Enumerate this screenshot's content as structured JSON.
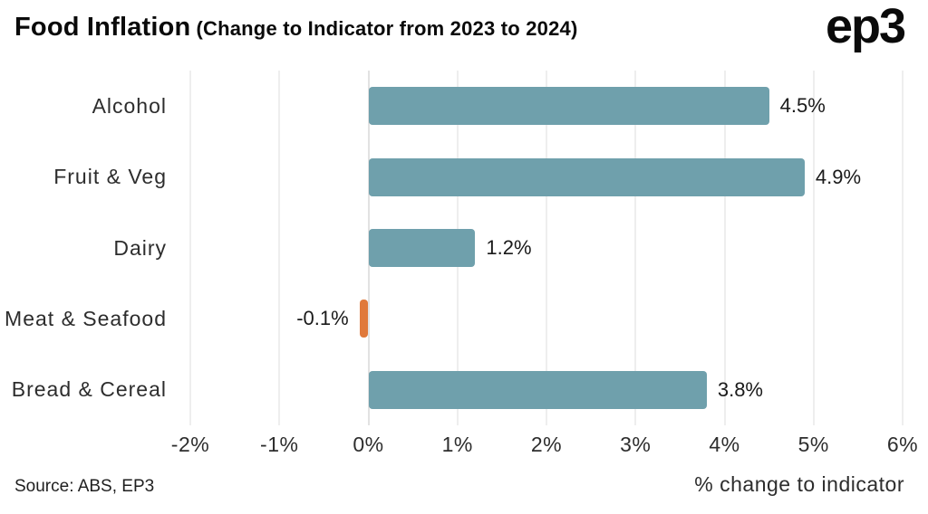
{
  "header": {
    "title": "Food Inflation",
    "subtitle": "(Change to Indicator from 2023 to 2024)",
    "logo": "ep3"
  },
  "chart_data": {
    "type": "bar",
    "orientation": "horizontal",
    "title": "Food Inflation (Change to Indicator from 2023 to 2024)",
    "categories": [
      "Alcohol",
      "Fruit & Veg",
      "Dairy",
      "Meat & Seafood",
      "Bread & Cereal"
    ],
    "values": [
      4.5,
      4.9,
      1.2,
      -0.1,
      3.8
    ],
    "value_labels": [
      "4.5%",
      "4.9%",
      "1.2%",
      "-0.1%",
      "3.8%"
    ],
    "xlim": [
      -2,
      6
    ],
    "x_tick_values": [
      -2,
      -1,
      0,
      1,
      2,
      3,
      4,
      5,
      6
    ],
    "x_ticks": [
      "-2%",
      "-1%",
      "0%",
      "1%",
      "2%",
      "3%",
      "4%",
      "5%",
      "6%"
    ],
    "xlabel": "% change to indicator",
    "grid": true,
    "legend": false,
    "bar_color": "#6FA0AC",
    "negative_bar_color": "#E0793B"
  },
  "footer": {
    "source": "Source: ABS, EP3"
  }
}
